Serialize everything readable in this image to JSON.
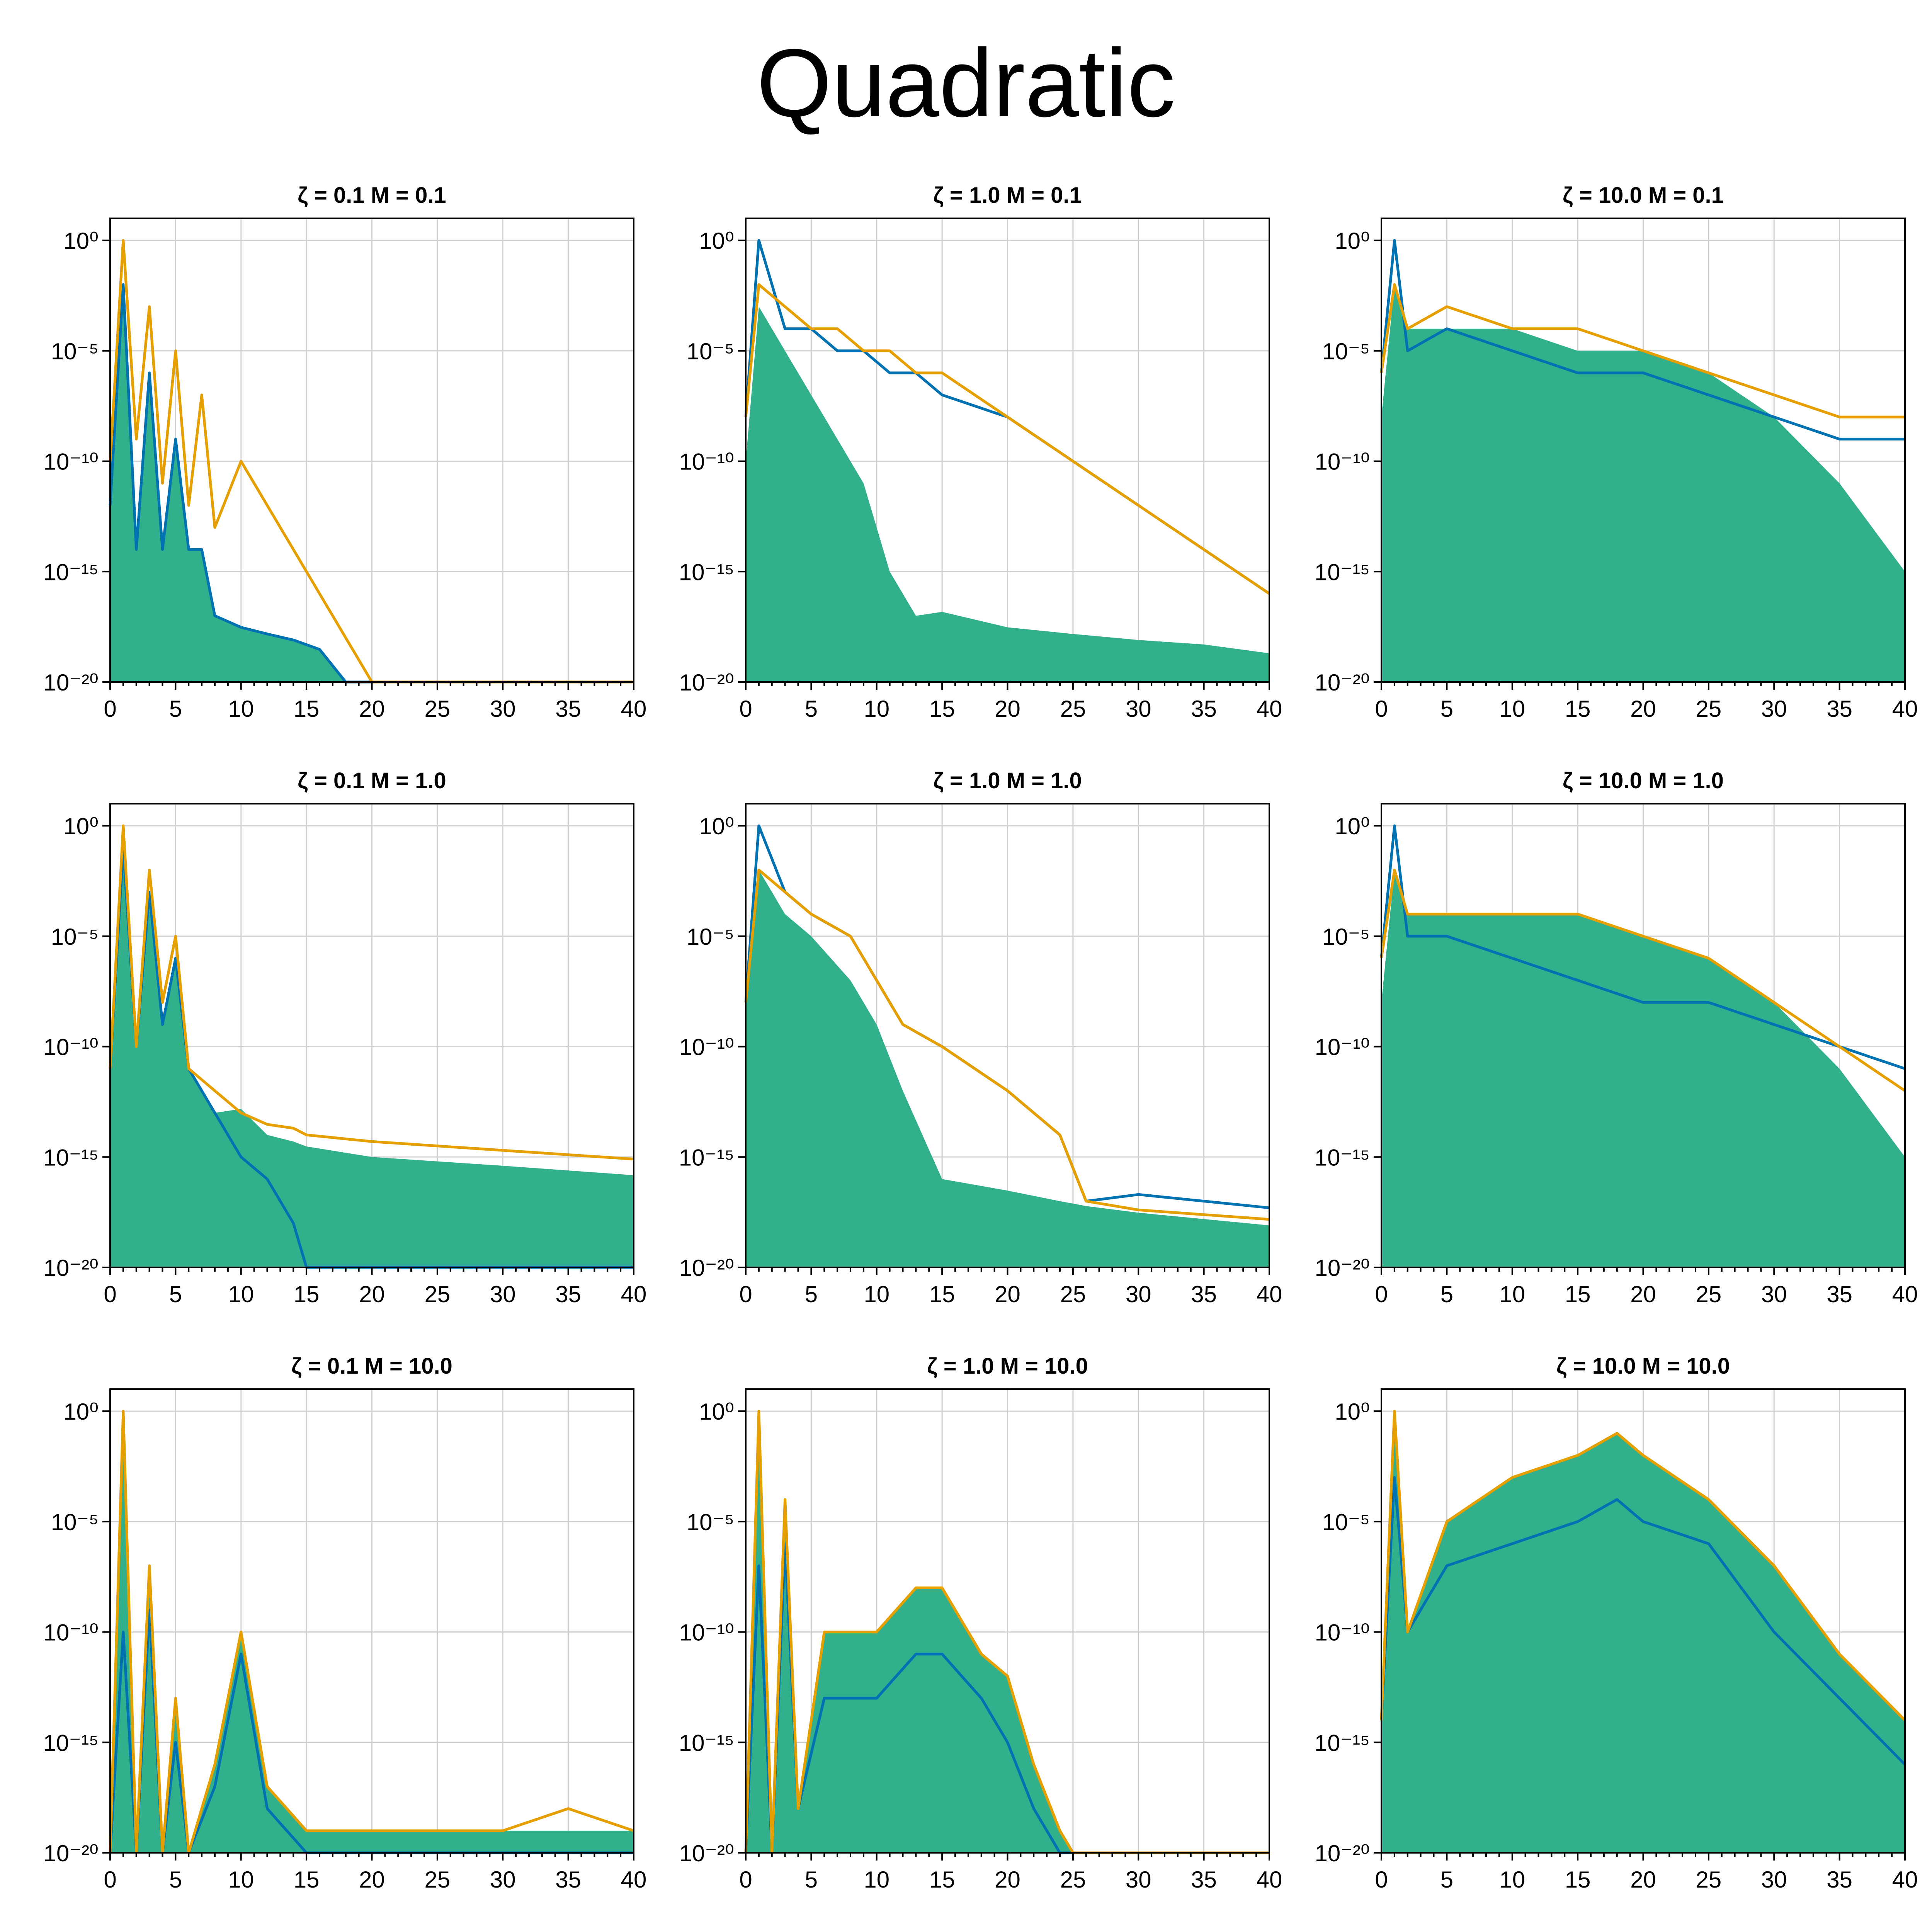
{
  "figure": {
    "title": "Quadratic"
  },
  "colors": {
    "fill": "#32b08c",
    "blue": "#0072b2",
    "orange": "#e69f00",
    "grid": "#cfcfcf"
  },
  "chart_data": [
    {
      "type": "area",
      "title": "ζ = 0.1  M = 0.1",
      "xlim": [
        0,
        40
      ],
      "yscale": "log",
      "ylim": [
        1e-20,
        10
      ],
      "grid": true,
      "x": [
        0,
        1,
        2,
        3,
        4,
        5,
        6,
        7,
        8,
        10,
        12,
        14,
        16,
        18,
        20,
        22,
        40
      ],
      "series": [
        {
          "name": "",
          "style": "fill",
          "values": [
            1e-12,
            0.001,
            1e-14,
            1e-06,
            1e-14,
            1e-09,
            1e-14,
            1e-14,
            1e-17,
            3e-18,
            1.5e-18,
            8e-19,
            3e-19,
            1e-20,
            1e-20,
            1e-20,
            1e-20
          ]
        },
        {
          "name": "",
          "style": "line-blue",
          "values": [
            1e-12,
            0.01,
            1e-14,
            1e-06,
            1e-14,
            1e-09,
            1e-14,
            1e-14,
            1e-17,
            3e-18,
            1.5e-18,
            8e-19,
            3e-19,
            1e-20,
            1e-20,
            1e-20,
            1e-20
          ]
        },
        {
          "name": "",
          "style": "line-orange",
          "values": [
            1e-10,
            1,
            1e-09,
            0.001,
            1e-11,
            1e-05,
            1e-12,
            1e-07,
            1e-13,
            1e-10,
            1e-12,
            1e-14,
            1e-16,
            1e-18,
            1e-20,
            1e-20,
            1e-20
          ]
        }
      ]
    },
    {
      "type": "area",
      "title": "ζ = 1.0  M = 0.1",
      "xlim": [
        0,
        40
      ],
      "yscale": "log",
      "ylim": [
        1e-20,
        10
      ],
      "grid": true,
      "x": [
        0,
        1,
        3,
        5,
        7,
        9,
        11,
        13,
        15,
        20,
        25,
        30,
        35,
        40
      ],
      "series": [
        {
          "name": "",
          "style": "fill",
          "values": [
            1e-10,
            0.001,
            1e-05,
            1e-07,
            1e-09,
            1e-11,
            1e-15,
            1e-17,
            1.5e-17,
            3e-18,
            1.5e-18,
            8e-19,
            5e-19,
            2e-19
          ]
        },
        {
          "name": "",
          "style": "line-blue",
          "values": [
            1e-08,
            1,
            0.0001,
            0.0001,
            1e-05,
            1e-05,
            1e-06,
            1e-06,
            1e-07,
            1e-08,
            1e-10,
            1e-12,
            1e-14,
            1e-16
          ]
        },
        {
          "name": "",
          "style": "line-orange",
          "values": [
            1e-08,
            0.01,
            0.001,
            0.0001,
            0.0001,
            1e-05,
            1e-05,
            1e-06,
            1e-06,
            1e-08,
            1e-10,
            1e-12,
            1e-14,
            1e-16
          ]
        }
      ]
    },
    {
      "type": "area",
      "title": "ζ = 10.0  M = 0.1",
      "xlim": [
        0,
        40
      ],
      "yscale": "log",
      "ylim": [
        1e-20,
        10
      ],
      "grid": true,
      "x": [
        0,
        1,
        2,
        5,
        10,
        15,
        20,
        25,
        30,
        35,
        40
      ],
      "series": [
        {
          "name": "",
          "style": "fill",
          "values": [
            1e-08,
            0.01,
            0.0001,
            0.0001,
            0.0001,
            1e-05,
            1e-05,
            1e-06,
            1e-08,
            1e-11,
            1e-15
          ]
        },
        {
          "name": "",
          "style": "line-blue",
          "values": [
            1e-06,
            1,
            1e-05,
            0.0001,
            1e-05,
            1e-06,
            1e-06,
            1e-07,
            1e-08,
            1e-09,
            1e-09
          ]
        },
        {
          "name": "",
          "style": "line-orange",
          "values": [
            1e-06,
            0.01,
            0.0001,
            0.001,
            0.0001,
            0.0001,
            1e-05,
            1e-06,
            1e-07,
            1e-08,
            1e-08
          ]
        }
      ]
    },
    {
      "type": "area",
      "title": "ζ = 0.1  M = 1.0",
      "xlim": [
        0,
        40
      ],
      "yscale": "log",
      "ylim": [
        1e-20,
        10
      ],
      "grid": true,
      "x": [
        0,
        1,
        2,
        3,
        4,
        5,
        6,
        8,
        10,
        12,
        14,
        15,
        20,
        30,
        40
      ],
      "series": [
        {
          "name": "",
          "style": "fill",
          "values": [
            1e-11,
            0.1,
            1e-10,
            0.001,
            1e-09,
            1e-06,
            1e-11,
            1e-13,
            1.5e-13,
            1e-14,
            5e-15,
            3e-15,
            1e-15,
            4e-16,
            1.5e-16
          ]
        },
        {
          "name": "",
          "style": "line-blue",
          "values": [
            1e-11,
            0.1,
            1e-10,
            0.001,
            1e-09,
            1e-06,
            1e-11,
            1e-13,
            1e-15,
            1e-16,
            1e-18,
            1e-20,
            1e-20,
            1e-20,
            1e-20
          ]
        },
        {
          "name": "",
          "style": "line-orange",
          "values": [
            1e-11,
            1,
            1e-10,
            0.01,
            1e-08,
            1e-05,
            1e-11,
            1e-12,
            1e-13,
            3e-14,
            2e-14,
            1e-14,
            5e-15,
            2e-15,
            8e-16
          ]
        }
      ]
    },
    {
      "type": "area",
      "title": "ζ = 1.0  M = 1.0",
      "xlim": [
        0,
        40
      ],
      "yscale": "log",
      "ylim": [
        1e-20,
        10
      ],
      "grid": true,
      "x": [
        0,
        1,
        3,
        5,
        8,
        10,
        12,
        15,
        20,
        24,
        26,
        30,
        40
      ],
      "series": [
        {
          "name": "",
          "style": "fill",
          "values": [
            1e-08,
            0.01,
            0.0001,
            1e-05,
            1e-07,
            1e-09,
            1e-12,
            1e-16,
            3e-17,
            1e-17,
            6e-18,
            3e-18,
            8e-19
          ]
        },
        {
          "name": "",
          "style": "line-blue",
          "values": [
            1e-08,
            1,
            0.001,
            0.0001,
            1e-05,
            1e-07,
            1e-09,
            1e-10,
            1e-12,
            1e-14,
            1e-17,
            2e-17,
            5e-18
          ]
        },
        {
          "name": "",
          "style": "line-orange",
          "values": [
            1e-08,
            0.01,
            0.001,
            0.0001,
            1e-05,
            1e-07,
            1e-09,
            1e-10,
            1e-12,
            1e-14,
            1e-17,
            4e-18,
            1.5e-18
          ]
        }
      ]
    },
    {
      "type": "area",
      "title": "ζ = 10.0  M = 1.0",
      "xlim": [
        0,
        40
      ],
      "yscale": "log",
      "ylim": [
        1e-20,
        10
      ],
      "grid": true,
      "x": [
        0,
        1,
        2,
        5,
        10,
        15,
        20,
        25,
        30,
        35,
        40
      ],
      "series": [
        {
          "name": "",
          "style": "fill",
          "values": [
            1e-08,
            0.01,
            0.0001,
            0.0001,
            0.0001,
            0.0001,
            1e-05,
            1e-06,
            1e-08,
            1e-11,
            1e-15
          ]
        },
        {
          "name": "",
          "style": "line-blue",
          "values": [
            1e-06,
            1,
            1e-05,
            1e-05,
            1e-06,
            1e-07,
            1e-08,
            1e-08,
            1e-09,
            1e-10,
            1e-11
          ]
        },
        {
          "name": "",
          "style": "line-orange",
          "values": [
            1e-06,
            0.01,
            0.0001,
            0.0001,
            0.0001,
            0.0001,
            1e-05,
            1e-06,
            1e-08,
            1e-10,
            1e-12
          ]
        }
      ]
    },
    {
      "type": "area",
      "title": "ζ = 0.1  M = 10.0",
      "xlim": [
        0,
        40
      ],
      "yscale": "log",
      "ylim": [
        1e-20,
        10
      ],
      "grid": true,
      "x": [
        0,
        1,
        2,
        3,
        4,
        5,
        6,
        8,
        10,
        12,
        15,
        20,
        25,
        30,
        35,
        40
      ],
      "series": [
        {
          "name": "",
          "style": "fill",
          "values": [
            1e-20,
            1,
            1e-20,
            1e-07,
            1e-20,
            1e-13,
            1e-20,
            1e-16,
            1e-10,
            1e-17,
            1e-19,
            1e-19,
            1e-19,
            1e-19,
            1e-19,
            1e-19
          ]
        },
        {
          "name": "",
          "style": "line-blue",
          "values": [
            1e-20,
            1e-10,
            1e-20,
            1e-09,
            1e-20,
            1e-15,
            1e-20,
            1e-17,
            1e-11,
            1e-18,
            1e-20,
            1e-20,
            1e-20,
            1e-20,
            1e-20,
            1e-20
          ]
        },
        {
          "name": "",
          "style": "line-orange",
          "values": [
            1e-20,
            1,
            1e-20,
            1e-07,
            1e-20,
            1e-13,
            1e-20,
            1e-16,
            1e-10,
            1e-17,
            1e-19,
            1e-19,
            1e-19,
            1e-19,
            1e-18,
            1e-19
          ]
        }
      ]
    },
    {
      "type": "area",
      "title": "ζ = 1.0  M = 10.0",
      "xlim": [
        0,
        40
      ],
      "yscale": "log",
      "ylim": [
        1e-20,
        10
      ],
      "grid": true,
      "x": [
        0,
        1,
        2,
        3,
        4,
        6,
        10,
        13,
        15,
        18,
        20,
        22,
        24,
        25,
        26,
        40
      ],
      "series": [
        {
          "name": "",
          "style": "fill",
          "values": [
            1e-20,
            1,
            1e-20,
            0.0001,
            1e-18,
            1e-10,
            1e-10,
            1e-08,
            1e-08,
            1e-11,
            1e-12,
            1e-16,
            1e-19,
            1e-20,
            1e-20,
            1e-20
          ]
        },
        {
          "name": "",
          "style": "line-blue",
          "values": [
            1e-20,
            1e-07,
            1e-20,
            1e-06,
            1e-18,
            1e-13,
            1e-13,
            1e-11,
            1e-11,
            1e-13,
            1e-15,
            1e-18,
            1e-20,
            1e-20,
            1e-20,
            1e-20
          ]
        },
        {
          "name": "",
          "style": "line-orange",
          "values": [
            1e-20,
            1,
            1e-20,
            0.0001,
            1e-18,
            1e-10,
            1e-10,
            1e-08,
            1e-08,
            1e-11,
            1e-12,
            1e-16,
            1e-19,
            1e-20,
            1e-20,
            1e-20
          ]
        }
      ]
    },
    {
      "type": "area",
      "title": "ζ = 10.0  M = 10.0",
      "xlim": [
        0,
        40
      ],
      "yscale": "log",
      "ylim": [
        1e-20,
        10
      ],
      "grid": true,
      "x": [
        0,
        1,
        2,
        5,
        10,
        15,
        18,
        20,
        25,
        30,
        35,
        40
      ],
      "series": [
        {
          "name": "",
          "style": "fill",
          "values": [
            1e-14,
            1,
            1e-10,
            1e-05,
            0.001,
            0.01,
            0.1,
            0.01,
            0.0001,
            1e-07,
            1e-11,
            1e-14
          ]
        },
        {
          "name": "",
          "style": "line-blue",
          "values": [
            1e-14,
            0.001,
            1e-10,
            1e-07,
            1e-06,
            1e-05,
            0.0001,
            1e-05,
            1e-06,
            1e-10,
            1e-13,
            1e-16
          ]
        },
        {
          "name": "",
          "style": "line-orange",
          "values": [
            1e-14,
            1,
            1e-10,
            1e-05,
            0.001,
            0.01,
            0.1,
            0.01,
            0.0001,
            1e-07,
            1e-11,
            1e-14
          ]
        }
      ]
    }
  ]
}
